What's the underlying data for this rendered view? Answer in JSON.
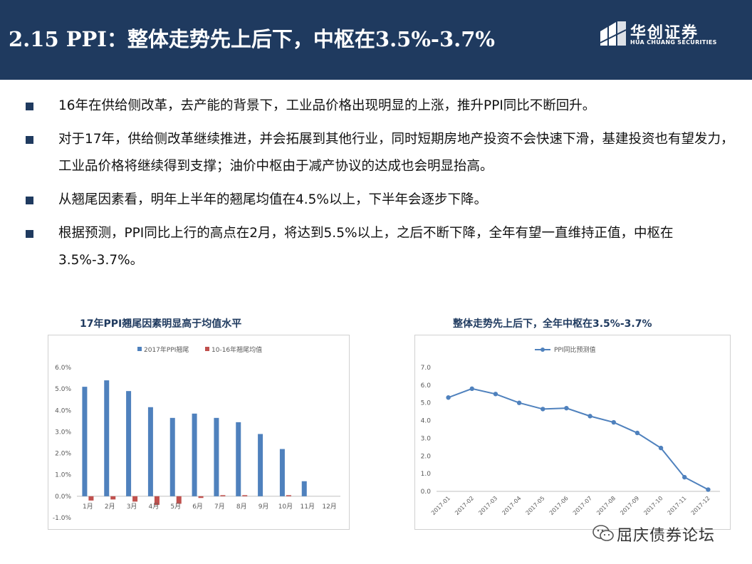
{
  "header": {
    "title": "2.15 PPI：整体走势先上后下，中枢在3.5%-3.7%",
    "logo_cn": "华创证券",
    "logo_en": "HUA CHUANG SECURITIES",
    "bg_color": "#1f3a5f"
  },
  "bullets": [
    "16年在供给侧改革，去产能的背景下，工业品价格出现明显的上涨，推升PPI同比不断回升。",
    "对于17年，供给侧改革继续推进，并会拓展到其他行业，同时短期房地产投资不会快速下滑，基建投资也有望发力，工业品价格将继续得到支撑；油价中枢由于减产协议的达成也会明显抬高。",
    "从翘尾因素看，明年上半年的翘尾均值在4.5%以上，下半年会逐步下降。",
    "根据预测，PPI同比上行的高点在2月，将达到5.5%以上，之后不断下降，全年有望一直维持正值，中枢在3.5%-3.7%。"
  ],
  "watermark": {
    "text": "屈庆债券论坛",
    "icon": "wechat-icon"
  },
  "chart_data": [
    {
      "type": "bar",
      "title": "17年PPI翘尾因素明显高于均值水平",
      "categories": [
        "1月",
        "2月",
        "3月",
        "4月",
        "5月",
        "6月",
        "7月",
        "8月",
        "9月",
        "10月",
        "11月",
        "12月"
      ],
      "series": [
        {
          "name": "2017年PPI翘尾",
          "color": "#4f81bd",
          "values": [
            5.1,
            5.4,
            4.9,
            4.15,
            3.65,
            3.85,
            3.65,
            3.45,
            2.9,
            2.2,
            0.7,
            0.0
          ]
        },
        {
          "name": "10-16年翘尾均值",
          "color": "#c0504d",
          "values": [
            -0.2,
            -0.15,
            -0.25,
            -0.4,
            -0.35,
            -0.08,
            0.05,
            0.05,
            0.0,
            0.05,
            0.0,
            0.0
          ]
        }
      ],
      "ylim": [
        -1.0,
        6.0
      ],
      "yticks": [
        "-1.0%",
        "0.0%",
        "1.0%",
        "2.0%",
        "3.0%",
        "4.0%",
        "5.0%",
        "6.0%"
      ],
      "legend": "top",
      "grid": false
    },
    {
      "type": "line",
      "title": "整体走势先上后下，全年中枢在3.5%-3.7%",
      "x": [
        "2017-01",
        "2017-02",
        "2017-03",
        "2017-04",
        "2017-05",
        "2017-06",
        "2017-07",
        "2017-08",
        "2017-09",
        "2017-10",
        "2017-11",
        "2017-12"
      ],
      "series": [
        {
          "name": "PPI同比预测值",
          "color": "#4f81bd",
          "values": [
            5.3,
            5.8,
            5.5,
            5.0,
            4.65,
            4.7,
            4.25,
            3.9,
            3.3,
            2.45,
            0.8,
            0.1
          ]
        }
      ],
      "ylim": [
        0.0,
        7.0
      ],
      "yticks": [
        "0.0",
        "1.0",
        "2.0",
        "3.0",
        "4.0",
        "5.0",
        "6.0",
        "7.0"
      ],
      "legend": "top",
      "grid": false
    }
  ]
}
